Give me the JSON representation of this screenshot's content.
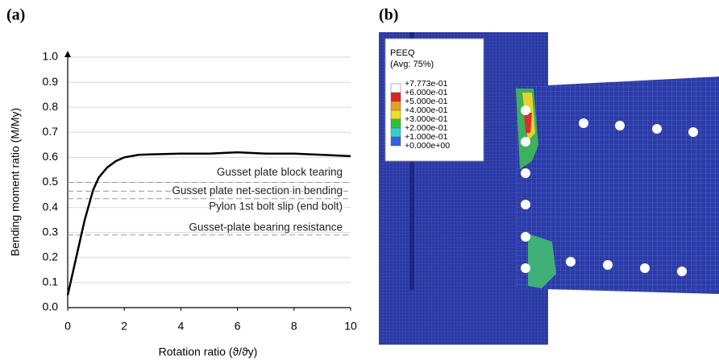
{
  "chart_data": {
    "type": "line",
    "panel_label": "(a)",
    "xlabel": "Rotation ratio (ϑ/ϑy)",
    "ylabel": "Bending moment ratio (M/My)",
    "x": [
      0,
      0.3,
      0.6,
      0.9,
      1.1,
      1.4,
      1.7,
      2.0,
      2.5,
      3,
      4,
      5,
      6,
      7,
      8,
      9,
      10
    ],
    "series": [
      {
        "color": "#000000",
        "values": [
          0.05,
          0.2,
          0.35,
          0.47,
          0.52,
          0.56,
          0.585,
          0.6,
          0.61,
          0.612,
          0.615,
          0.615,
          0.62,
          0.615,
          0.615,
          0.61,
          0.605
        ]
      }
    ],
    "xlim": [
      0,
      10
    ],
    "xticks": [
      0,
      2,
      4,
      6,
      8,
      10
    ],
    "ylim": [
      0,
      1
    ],
    "yticks": [
      {
        "value": 0,
        "label": "0.0"
      },
      0.1,
      0.2,
      0.3,
      0.4,
      0.5,
      0.6,
      0.7,
      0.8,
      0.9,
      {
        "value": 1,
        "label": "1.0"
      }
    ],
    "grid": true,
    "reference_lines": [
      {
        "label": "Gusset plate block tearing",
        "value": 0.5
      },
      {
        "label": "Gusset plate net-section in bending",
        "value": 0.465
      },
      {
        "label": "Pylon 1st bolt slip (end bolt)",
        "value": 0.435
      },
      {
        "label": "Gusset-plate bearing resistance",
        "value": 0.29
      }
    ]
  },
  "panel_b": {
    "panel_label": "(b)",
    "legend_title": "PEEQ",
    "legend_subtitle": "(Avg: 75%)",
    "levels": [
      "+7.773e-01",
      "+6.000e-01",
      "+5.000e-01",
      "+4.000e-01",
      "+3.000e-01",
      "+2.000e-01",
      "+1.000e-01",
      "+0.000e+00"
    ]
  }
}
